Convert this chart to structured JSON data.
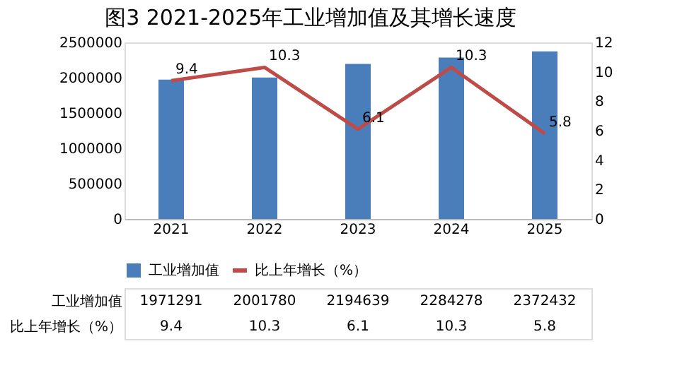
{
  "chart_data": {
    "type": "bar",
    "title": "图3 2021-2025年工业增加值及其增长速度",
    "categories": [
      "2021",
      "2022",
      "2023",
      "2024",
      "2025"
    ],
    "series": [
      {
        "name": "工业增加值",
        "color": "#4a7ebb",
        "values": [
          1971291,
          2001780,
          2194639,
          2284278,
          2372432
        ]
      },
      {
        "name": "比上年增长（%）",
        "color": "#be4b48",
        "type": "line",
        "axis": "y2",
        "values": [
          9.4,
          10.3,
          6.1,
          10.3,
          5.8
        ]
      }
    ],
    "ylim": [
      0,
      2500000
    ],
    "yticks": [
      0,
      500000,
      1000000,
      1500000,
      2000000,
      2500000
    ],
    "y2lim": [
      0,
      12
    ],
    "y2ticks": [
      0,
      2,
      4,
      6,
      8,
      10,
      12
    ],
    "data_labels": true,
    "grid": false,
    "legend": "bottom",
    "marker": "none",
    "line_style": "solid",
    "annotations": [
      "9.4",
      "10.3",
      "6.1",
      "10.3",
      "5.8"
    ]
  }
}
